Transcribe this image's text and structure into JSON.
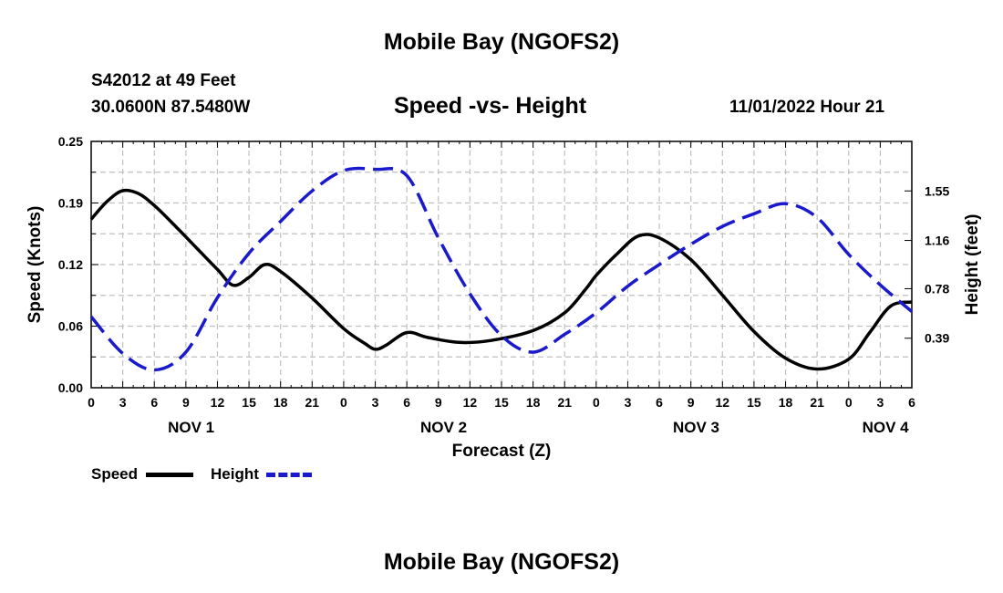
{
  "header": {
    "title": "Mobile Bay (NGOFS2)",
    "station": "S42012 at 49 Feet",
    "coords": "30.0600N  87.5480W",
    "chart_title": "Speed -vs- Height",
    "timestamp": "11/01/2022 Hour 21"
  },
  "footer": {
    "title": "Mobile Bay (NGOFS2)"
  },
  "legend": {
    "speed_label": "Speed",
    "height_label": "Height"
  },
  "colors": {
    "speed": "#000000",
    "height": "#1a1acc",
    "grid": "#c0c0c0"
  },
  "chart_data": {
    "type": "line",
    "xlabel": "Forecast (Z)",
    "ylabel_left": "Speed (Knots)",
    "ylabel_right": "Height (feet)",
    "x_range_hours": [
      0,
      78
    ],
    "x_tick_labels": [
      "0",
      "3",
      "6",
      "9",
      "12",
      "15",
      "18",
      "21",
      "0",
      "3",
      "6",
      "9",
      "12",
      "15",
      "18",
      "21",
      "0",
      "3",
      "6",
      "9",
      "12",
      "15",
      "18",
      "21",
      "0",
      "3",
      "6"
    ],
    "date_labels": [
      {
        "label": "NOV 1",
        "hour": 9.5
      },
      {
        "label": "NOV 2",
        "hour": 33.5
      },
      {
        "label": "NOV 3",
        "hour": 57.5
      },
      {
        "label": "NOV 4",
        "hour": 75.5
      }
    ],
    "ylim_left": [
      0,
      0.25
    ],
    "yticks_left": [
      "0.00",
      "0.06",
      "0.12",
      "0.19",
      "0.25"
    ],
    "yticks_left_values": [
      0,
      0.0625,
      0.125,
      0.1875,
      0.25
    ],
    "ylim_right": [
      0,
      1.94
    ],
    "yticks_right": [
      "0.39",
      "0.78",
      "1.16",
      "1.55"
    ],
    "yticks_right_values": [
      0.39,
      0.78,
      1.16,
      1.55
    ],
    "grid": true,
    "series": [
      {
        "name": "Speed",
        "axis": "left",
        "style": "solid",
        "x": [
          0,
          1.5,
          3,
          4.5,
          6,
          8,
          10,
          12,
          13.5,
          15,
          16.5,
          18,
          21,
          24,
          26,
          27,
          28,
          30,
          32,
          35,
          38,
          42,
          45,
          47,
          48,
          50,
          52,
          54,
          57,
          60,
          63,
          66,
          69,
          72,
          74,
          76,
          78
        ],
        "y": [
          0.171,
          0.189,
          0.2,
          0.197,
          0.185,
          0.164,
          0.142,
          0.12,
          0.104,
          0.112,
          0.125,
          0.118,
          0.091,
          0.06,
          0.045,
          0.039,
          0.043,
          0.056,
          0.051,
          0.046,
          0.048,
          0.058,
          0.076,
          0.1,
          0.114,
          0.136,
          0.154,
          0.152,
          0.13,
          0.094,
          0.057,
          0.03,
          0.019,
          0.029,
          0.056,
          0.083,
          0.087
        ]
      },
      {
        "name": "Height",
        "axis": "right",
        "style": "dashed",
        "x": [
          0,
          3,
          6,
          9,
          12,
          15,
          18,
          21,
          24,
          27,
          30,
          33,
          36,
          39,
          42,
          45,
          48,
          51,
          54,
          57,
          60,
          63,
          66,
          69,
          72,
          75,
          78
        ],
        "y": [
          0.56,
          0.27,
          0.14,
          0.28,
          0.71,
          1.06,
          1.31,
          1.55,
          1.71,
          1.72,
          1.67,
          1.18,
          0.74,
          0.41,
          0.28,
          0.42,
          0.59,
          0.8,
          0.97,
          1.13,
          1.27,
          1.37,
          1.45,
          1.34,
          1.05,
          0.81,
          0.6
        ]
      }
    ]
  }
}
